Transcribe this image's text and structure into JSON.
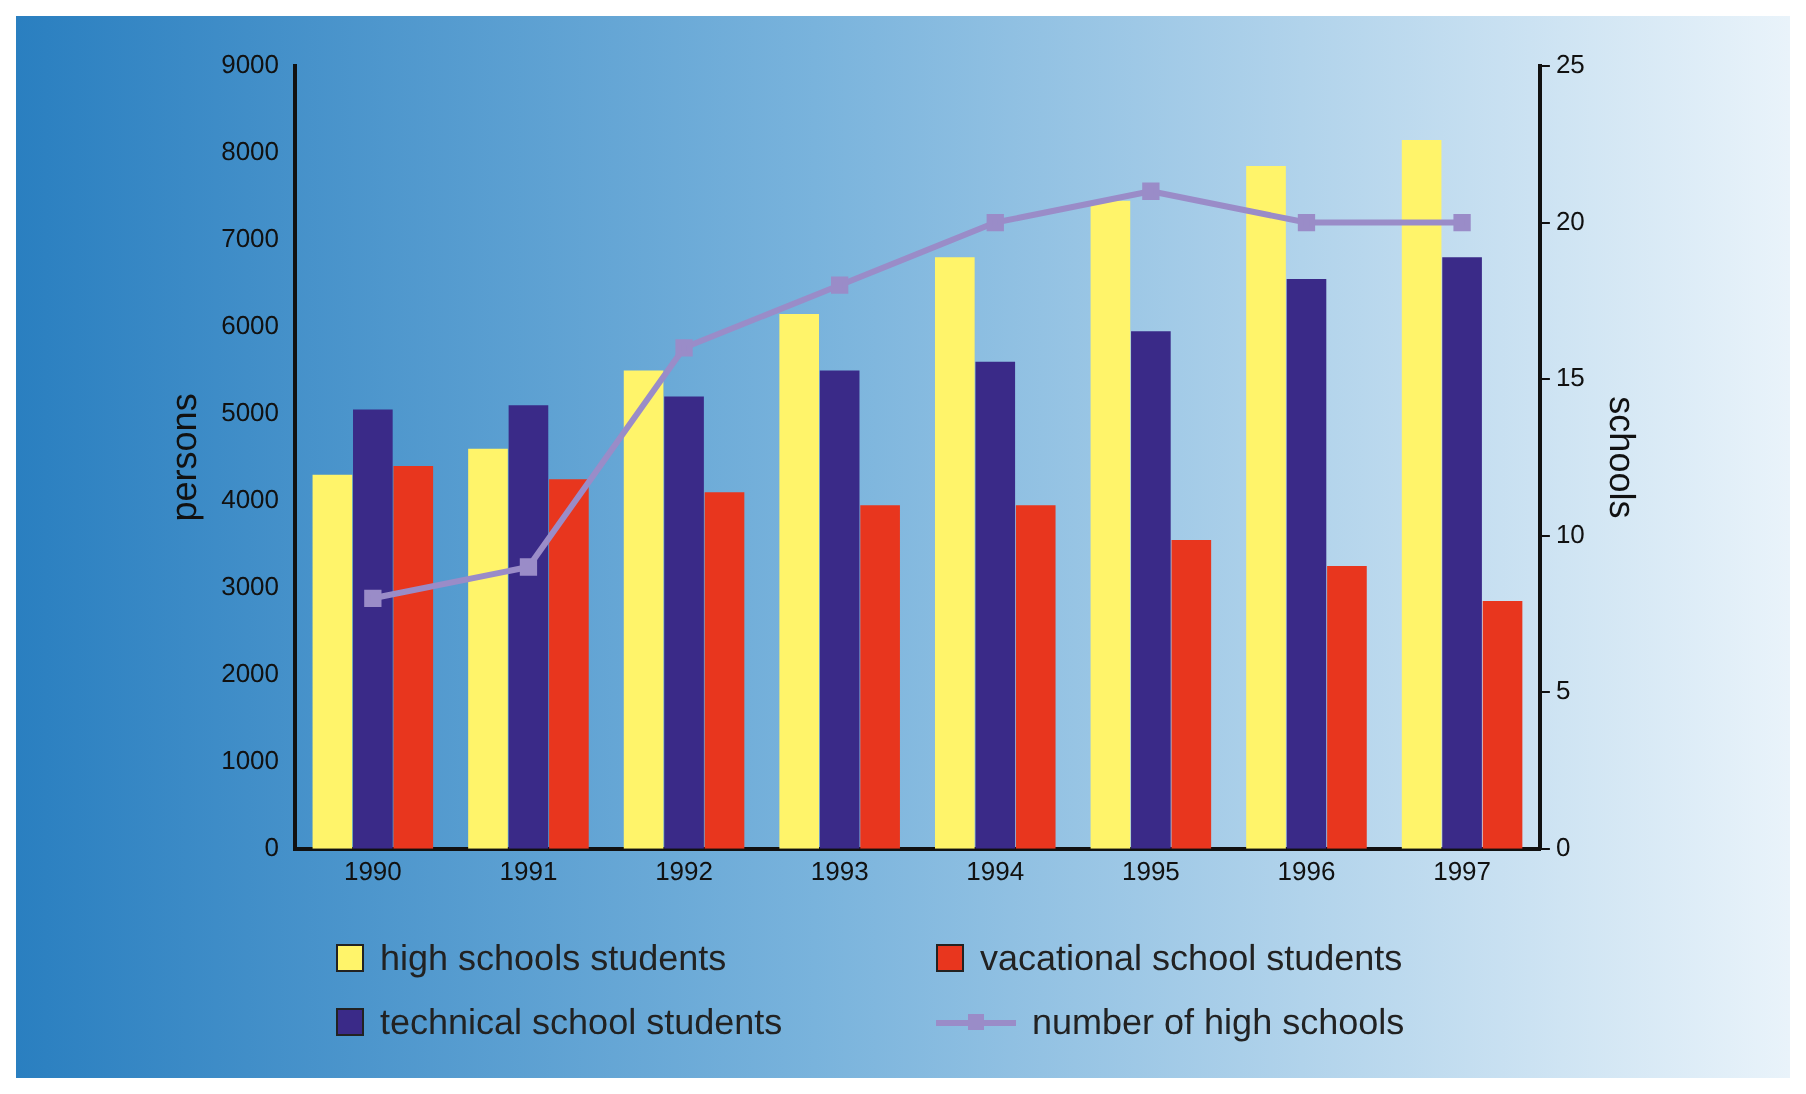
{
  "chart_data": {
    "type": "bar",
    "categories": [
      "1990",
      "1991",
      "1992",
      "1993",
      "1994",
      "1995",
      "1996",
      "1997"
    ],
    "ylabel": "persons",
    "y2label": "schools",
    "ylim": [
      0,
      9000
    ],
    "yticks": [
      0,
      1000,
      2000,
      3000,
      4000,
      5000,
      6000,
      7000,
      8000,
      9000
    ],
    "y2lim": [
      0,
      25
    ],
    "y2ticks": [
      0,
      5,
      10,
      15,
      20,
      25
    ],
    "grid": false,
    "legend": "bottom",
    "marker": "square",
    "line_style": "solid",
    "series": [
      {
        "name": "high schools students",
        "color": "#fff46a",
        "values": [
          4300,
          4600,
          5500,
          6150,
          6800,
          7450,
          7850,
          8150
        ]
      },
      {
        "name": "technical school students",
        "color": "#3a2a88",
        "values": [
          5050,
          5100,
          5200,
          5500,
          5600,
          5950,
          6550,
          6800
        ]
      },
      {
        "name": "vacational school students",
        "color": "#e8361e",
        "values": [
          4400,
          4250,
          4100,
          3950,
          3950,
          3550,
          3250,
          2850
        ]
      },
      {
        "name": "number of high schools",
        "type": "line",
        "axis": "y2",
        "color": "#9a8cc8",
        "values": [
          8,
          9,
          16,
          18,
          20,
          21,
          20,
          20
        ]
      }
    ]
  }
}
